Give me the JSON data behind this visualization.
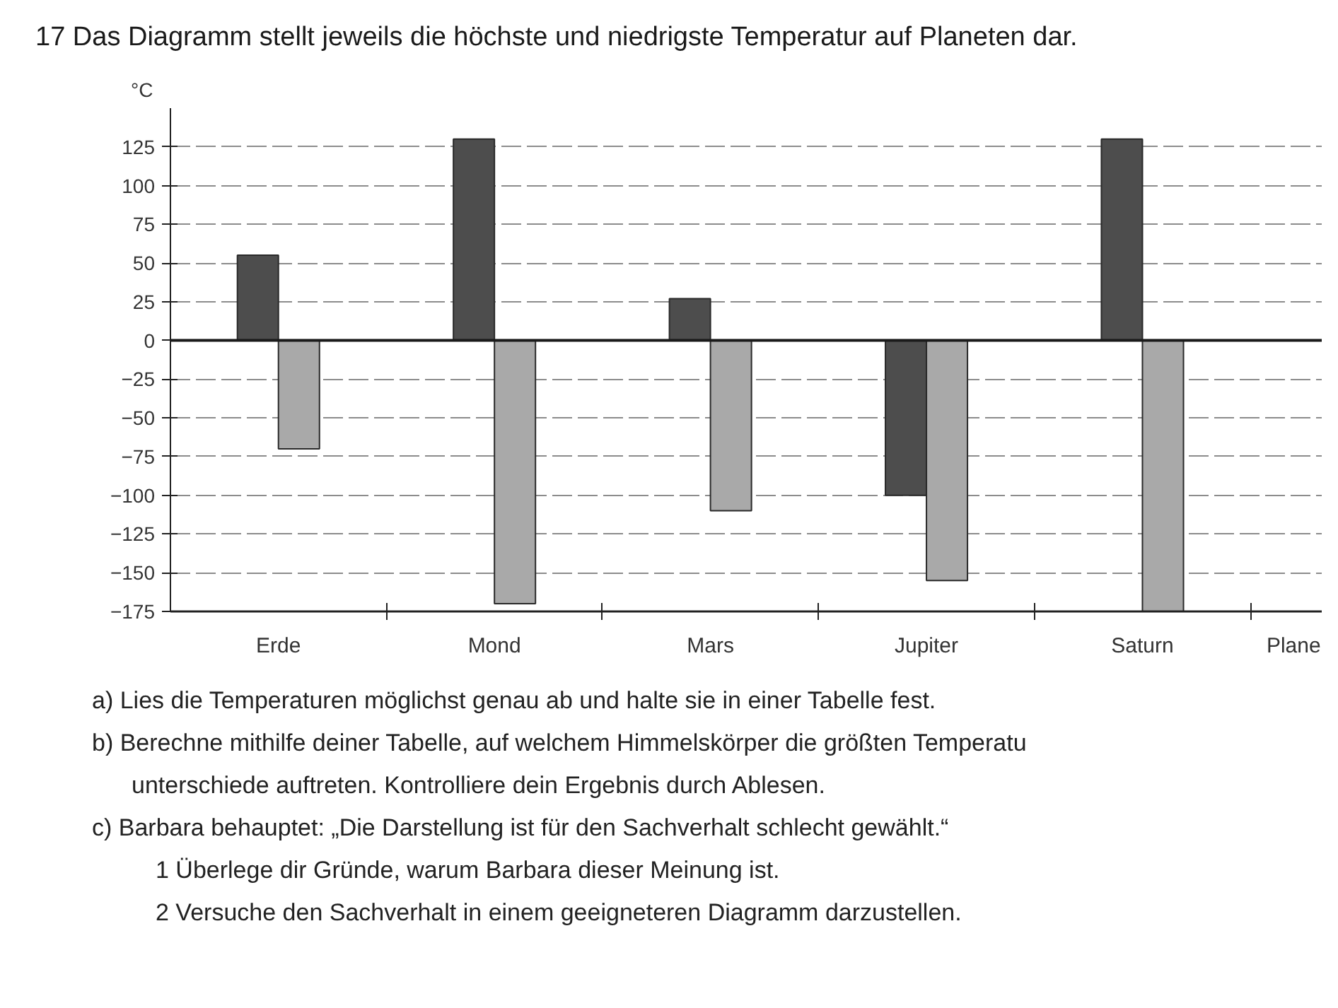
{
  "chart_data": {
    "type": "bar",
    "title": "17 Das Diagramm stellt jeweils die höchste und niedrigste Temperatur auf Planeten dar.",
    "xlabel": "Plane",
    "ylabel": "°C",
    "categories": [
      "Erde",
      "Mond",
      "Mars",
      "Jupiter",
      "Saturn"
    ],
    "series": [
      {
        "color": "#4d4d4d",
        "values": [
          55,
          130,
          27,
          -100,
          130
        ]
      },
      {
        "color": "#a9a9a9",
        "values": [
          -70,
          -170,
          -110,
          -155,
          -175
        ]
      }
    ],
    "ylim": [
      -175,
      150
    ],
    "yticks": [
      -175,
      -150,
      -125,
      -100,
      -75,
      -50,
      -25,
      0,
      25,
      50,
      75,
      100,
      125
    ],
    "grid": "y",
    "ref_lines": [
      {
        "axis": "y",
        "value": 0,
        "color": "#1a1a1a"
      }
    ],
    "annotations": [
      "a) Lies die Temperaturen möglichst genau ab und halte sie in einer Tabelle fest.",
      "b) Berechne mithilfe deiner Tabelle, auf welchem Himmelskörper die größten Temperatu",
      "unterschiede auftreten. Kontrolliere dein Ergebnis durch Ablesen.",
      "c) Barbara behauptet: „Die Darstellung ist für den Sachverhalt schlecht gewählt.“",
      "1 Überlege dir Gründe, warum Barbara dieser Meinung ist.",
      "2 Versuche den Sachverhalt in einem geeigneteren Diagramm darzustellen."
    ]
  }
}
